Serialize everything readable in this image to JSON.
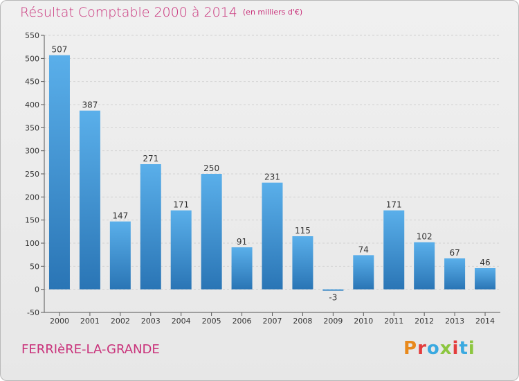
{
  "header": {
    "title": "Résultat Comptable 2000 à 2014",
    "subtitle": "(en milliers d'€)"
  },
  "footer": {
    "commune": "FERRIèRE-LA-GRANDE",
    "logo": "Proxiti",
    "logo_colors": [
      "#e8891c",
      "#e33c3c",
      "#3aa9e0",
      "#8cc63f",
      "#e33c3c",
      "#3aa9e0",
      "#8cc63f"
    ]
  },
  "colors": {
    "title": "#c9317a",
    "bar_light": "#5aafea",
    "bar_dark": "#2a75b5",
    "grid": "#d2d2d2",
    "axis_text": "#333333"
  },
  "chart_data": {
    "type": "bar",
    "categories": [
      "2000",
      "2001",
      "2002",
      "2003",
      "2004",
      "2005",
      "2006",
      "2007",
      "2008",
      "2009",
      "2010",
      "2011",
      "2012",
      "2013",
      "2014"
    ],
    "values": [
      507,
      387,
      147,
      271,
      171,
      250,
      91,
      231,
      115,
      -3,
      74,
      171,
      102,
      67,
      46
    ],
    "data_labels": [
      "507",
      "387",
      "147",
      "271",
      "171",
      "250",
      "91",
      "231",
      "115",
      "-3",
      "74",
      "171",
      "102",
      "67",
      "46"
    ],
    "ylim": [
      -50,
      550
    ],
    "yticks": [
      -50,
      0,
      50,
      100,
      150,
      200,
      250,
      300,
      350,
      400,
      450,
      500,
      550
    ],
    "grid": true,
    "xlabel": "",
    "ylabel": ""
  }
}
